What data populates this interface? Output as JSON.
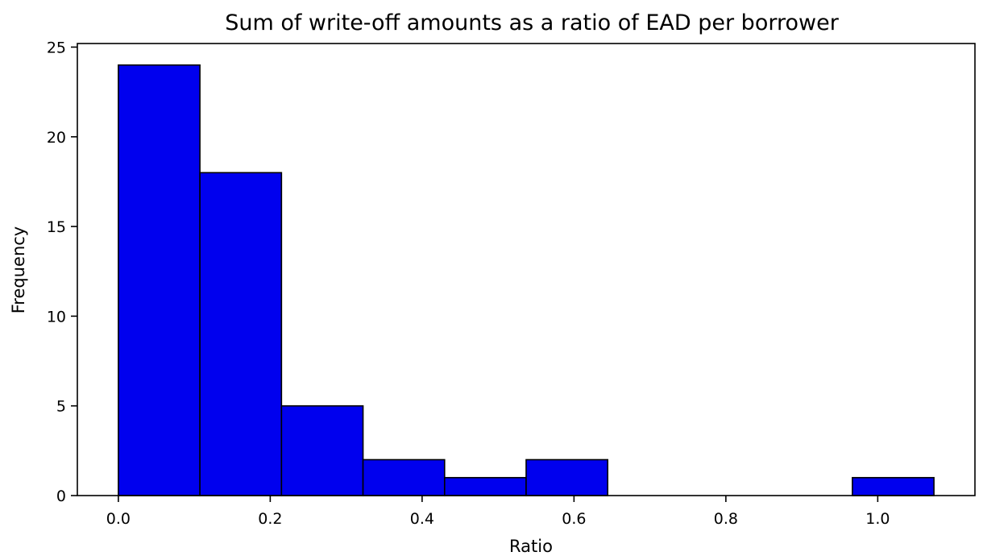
{
  "chart_data": {
    "type": "bar",
    "title": "Sum of write-off amounts as a ratio of EAD per borrower",
    "xlabel": "Ratio",
    "ylabel": "Frequency",
    "bin_edges": [
      0.0,
      0.1074,
      0.2148,
      0.3222,
      0.4296,
      0.537,
      0.6444,
      0.7518,
      0.8592,
      0.9666,
      1.074
    ],
    "values": [
      24,
      18,
      5,
      2,
      1,
      2,
      0,
      0,
      0,
      1
    ],
    "xlim": [
      -0.054,
      1.128
    ],
    "ylim": [
      0,
      25.2
    ],
    "x_ticks": [
      0.0,
      0.2,
      0.4,
      0.6,
      0.8,
      1.0
    ],
    "x_tick_labels": [
      "0.0",
      "0.2",
      "0.4",
      "0.6",
      "0.8",
      "1.0"
    ],
    "y_ticks": [
      0,
      5,
      10,
      15,
      20,
      25
    ],
    "y_tick_labels": [
      "0",
      "5",
      "10",
      "15",
      "20",
      "25"
    ],
    "bar_color": "#0000ee",
    "edge_color": "#000000",
    "grid": false
  }
}
